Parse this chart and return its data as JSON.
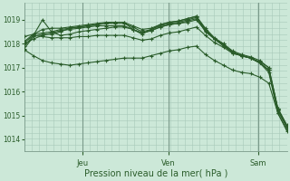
{
  "bg_color": "#cce8d8",
  "grid_color": "#a8c8b8",
  "line_color": "#2a5c2a",
  "marker_color": "#2a5c2a",
  "xlabel": "Pression niveau de la mer( hPa )",
  "xlabel_fontsize": 7,
  "ylim": [
    1013.5,
    1019.7
  ],
  "yticks": [
    1014,
    1015,
    1016,
    1017,
    1018,
    1019
  ],
  "ytick_fontsize": 5.5,
  "xtick_fontsize": 6,
  "day_labels": [
    "Jeu",
    "Ven",
    "Sam"
  ],
  "day_positions": [
    0.22,
    0.55,
    0.89
  ],
  "series": [
    [
      1018.3,
      1018.4,
      1018.45,
      1018.5,
      1018.6,
      1018.65,
      1018.7,
      1018.75,
      1018.8,
      1018.85,
      1018.85,
      1018.85,
      1018.7,
      1018.5,
      1018.6,
      1018.8,
      1018.9,
      1018.95,
      1019.05,
      1019.15,
      1018.6,
      1018.2,
      1017.9,
      1017.65,
      1017.5,
      1017.4,
      1017.2,
      1016.9,
      1015.2,
      1014.5
    ],
    [
      1018.1,
      1018.4,
      1018.6,
      1018.65,
      1018.65,
      1018.7,
      1018.75,
      1018.8,
      1018.85,
      1018.9,
      1018.9,
      1018.9,
      1018.75,
      1018.6,
      1018.65,
      1018.8,
      1018.9,
      1018.95,
      1019.05,
      1019.15,
      1018.65,
      1018.25,
      1018.0,
      1017.7,
      1017.55,
      1017.45,
      1017.3,
      1017.0,
      1015.3,
      1014.6
    ],
    [
      1018.0,
      1018.2,
      1018.35,
      1018.45,
      1018.55,
      1018.6,
      1018.65,
      1018.7,
      1018.75,
      1018.75,
      1018.75,
      1018.75,
      1018.6,
      1018.45,
      1018.55,
      1018.7,
      1018.8,
      1018.85,
      1018.9,
      1019.0,
      1018.55,
      1018.2,
      1017.95,
      1017.65,
      1017.5,
      1017.4,
      1017.2,
      1016.9,
      1015.25,
      1014.55
    ],
    [
      1018.05,
      1018.35,
      1018.3,
      1018.25,
      1018.25,
      1018.25,
      1018.3,
      1018.3,
      1018.35,
      1018.35,
      1018.35,
      1018.35,
      1018.25,
      1018.15,
      1018.2,
      1018.35,
      1018.45,
      1018.5,
      1018.6,
      1018.7,
      1018.35,
      1018.05,
      1017.85,
      1017.6,
      1017.5,
      1017.4,
      1017.25,
      1017.0,
      1015.3,
      1014.55
    ],
    [
      1017.9,
      1018.35,
      1019.0,
      1018.5,
      1018.35,
      1018.4,
      1018.5,
      1018.55,
      1018.6,
      1018.65,
      1018.7,
      1018.7,
      1018.6,
      1018.45,
      1018.55,
      1018.7,
      1018.8,
      1018.85,
      1018.95,
      1019.05,
      1018.6,
      1018.2,
      1017.95,
      1017.65,
      1017.5,
      1017.4,
      1017.2,
      1016.9,
      1015.25,
      1014.5
    ],
    [
      1017.8,
      1018.3,
      1018.4,
      1018.4,
      1018.5,
      1018.65,
      1018.7,
      1018.75,
      1018.8,
      1018.85,
      1018.9,
      1018.9,
      1018.6,
      1018.4,
      1018.6,
      1018.75,
      1018.85,
      1018.9,
      1019.0,
      1019.1,
      1018.5,
      1018.2,
      1018.0,
      1017.6,
      1017.5,
      1017.4,
      1017.2,
      1016.8,
      1015.1,
      1014.4
    ],
    [
      1017.75,
      1017.5,
      1017.3,
      1017.2,
      1017.15,
      1017.1,
      1017.15,
      1017.2,
      1017.25,
      1017.3,
      1017.35,
      1017.4,
      1017.4,
      1017.4,
      1017.5,
      1017.6,
      1017.7,
      1017.75,
      1017.85,
      1017.9,
      1017.55,
      1017.3,
      1017.1,
      1016.9,
      1016.8,
      1016.75,
      1016.6,
      1016.35,
      1015.1,
      1014.35
    ]
  ],
  "n_points": 30
}
